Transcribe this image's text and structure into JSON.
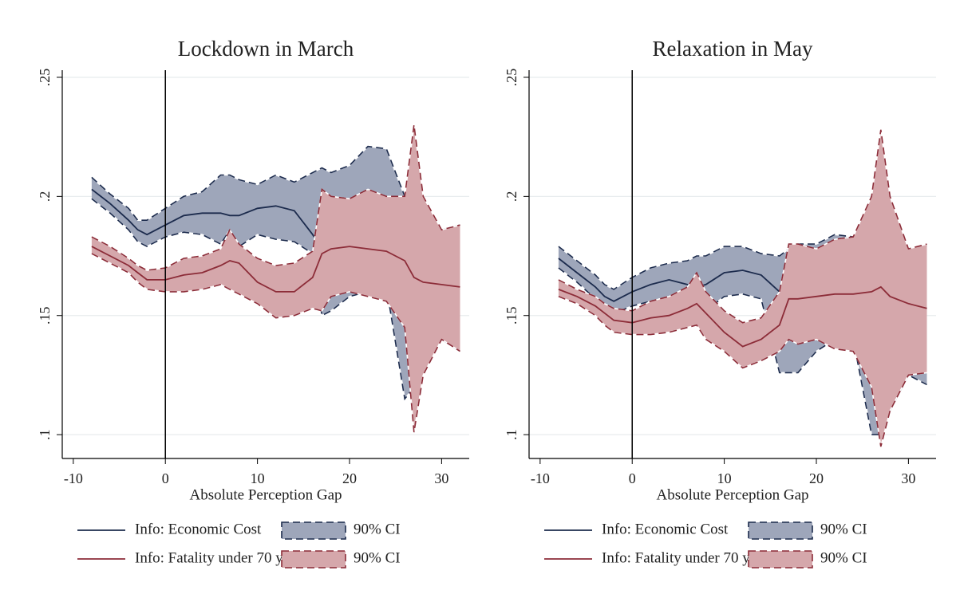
{
  "chart_data": [
    {
      "type": "line",
      "title": "Lockdown in March",
      "x_label": "Absolute Perception Gap",
      "xlim": [
        -11.2,
        33
      ],
      "ylim": [
        0.09,
        0.253
      ],
      "xticks": [
        -10,
        0,
        10,
        20,
        30
      ],
      "yticks": [
        {
          "value": 0.1,
          "label": ".1"
        },
        {
          "value": 0.15,
          "label": ".15"
        },
        {
          "value": 0.2,
          "label": ".2"
        },
        {
          "value": 0.25,
          "label": ".25"
        }
      ],
      "grid": true,
      "xline": 0,
      "x": [
        -8,
        -6,
        -4,
        -3,
        -2,
        0,
        2,
        4,
        6,
        7,
        8,
        10,
        12,
        14,
        16,
        17,
        18,
        20,
        22,
        24,
        26,
        27,
        28,
        30,
        32
      ],
      "series": [
        {
          "name": "Info: Economic Cost",
          "color": "#1c2b4d",
          "ci_name": "90% CI",
          "ci_color": "#9ea6ba",
          "values": [
            0.203,
            0.197,
            0.19,
            0.186,
            0.184,
            0.188,
            0.192,
            0.193,
            0.193,
            0.192,
            0.192,
            0.195,
            0.196,
            0.194,
            0.184,
            0.178,
            0.178,
            0.18,
            0.18,
            0.178,
            0.177,
            0.165,
            0.163,
            0.162,
            0.161
          ],
          "lower": [
            0.199,
            0.193,
            0.186,
            0.181,
            0.179,
            0.183,
            0.185,
            0.184,
            0.18,
            0.186,
            0.179,
            0.184,
            0.182,
            0.181,
            0.176,
            0.15,
            0.152,
            0.158,
            0.16,
            0.162,
            0.115,
            0.12,
            0.14,
            0.14,
            0.135
          ],
          "upper": [
            0.208,
            0.201,
            0.195,
            0.19,
            0.19,
            0.195,
            0.2,
            0.202,
            0.209,
            0.209,
            0.207,
            0.205,
            0.209,
            0.206,
            0.21,
            0.212,
            0.21,
            0.213,
            0.221,
            0.22,
            0.2,
            0.212,
            0.19,
            0.186,
            0.188
          ]
        },
        {
          "name": "Info: Fatality under 70 years",
          "color": "#8c2c38",
          "ci_name": "90% CI",
          "ci_color": "#d5a7ab",
          "values": [
            0.179,
            0.175,
            0.171,
            0.168,
            0.165,
            0.165,
            0.167,
            0.168,
            0.171,
            0.173,
            0.172,
            0.164,
            0.16,
            0.16,
            0.166,
            0.176,
            0.178,
            0.179,
            0.178,
            0.177,
            0.173,
            0.166,
            0.164,
            0.163,
            0.162
          ],
          "lower": [
            0.176,
            0.172,
            0.168,
            0.164,
            0.161,
            0.16,
            0.16,
            0.161,
            0.163,
            0.161,
            0.159,
            0.155,
            0.149,
            0.15,
            0.153,
            0.152,
            0.158,
            0.16,
            0.158,
            0.156,
            0.145,
            0.101,
            0.125,
            0.14,
            0.135
          ],
          "upper": [
            0.183,
            0.179,
            0.174,
            0.171,
            0.169,
            0.17,
            0.174,
            0.175,
            0.178,
            0.186,
            0.18,
            0.174,
            0.171,
            0.172,
            0.177,
            0.203,
            0.2,
            0.199,
            0.203,
            0.2,
            0.2,
            0.23,
            0.2,
            0.186,
            0.188
          ]
        }
      ]
    },
    {
      "type": "line",
      "title": "Relaxation in May",
      "x_label": "Absolute Perception Gap",
      "xlim": [
        -11.2,
        33
      ],
      "ylim": [
        0.09,
        0.253
      ],
      "xticks": [
        -10,
        0,
        10,
        20,
        30
      ],
      "yticks": [
        {
          "value": 0.1,
          "label": ".1"
        },
        {
          "value": 0.15,
          "label": ".15"
        },
        {
          "value": 0.2,
          "label": ".2"
        },
        {
          "value": 0.25,
          "label": ".25"
        }
      ],
      "grid": true,
      "xline": 0,
      "x": [
        -8,
        -6,
        -4,
        -3,
        -2,
        0,
        2,
        4,
        6,
        7,
        8,
        10,
        12,
        14,
        16,
        17,
        18,
        20,
        22,
        24,
        26,
        27,
        28,
        30,
        32
      ],
      "series": [
        {
          "name": "Info: Economic Cost",
          "color": "#1c2b4d",
          "ci_name": "90% CI",
          "ci_color": "#9ea6ba",
          "values": [
            0.174,
            0.168,
            0.162,
            0.158,
            0.156,
            0.16,
            0.163,
            0.165,
            0.163,
            0.162,
            0.163,
            0.168,
            0.169,
            0.167,
            0.16,
            0.159,
            0.159,
            0.159,
            0.159,
            0.159,
            0.156,
            0.155,
            0.155,
            0.154,
            0.153
          ],
          "lower": [
            0.17,
            0.164,
            0.157,
            0.153,
            0.151,
            0.154,
            0.156,
            0.158,
            0.155,
            0.155,
            0.152,
            0.158,
            0.159,
            0.157,
            0.126,
            0.126,
            0.126,
            0.135,
            0.14,
            0.14,
            0.1,
            0.1,
            0.11,
            0.125,
            0.121
          ],
          "upper": [
            0.179,
            0.173,
            0.167,
            0.163,
            0.161,
            0.166,
            0.17,
            0.172,
            0.173,
            0.175,
            0.175,
            0.179,
            0.179,
            0.176,
            0.175,
            0.178,
            0.18,
            0.18,
            0.184,
            0.183,
            0.183,
            0.17,
            0.178,
            0.178,
            0.179
          ]
        },
        {
          "name": "Info: Fatality under 70 years",
          "color": "#8c2c38",
          "ci_name": "90% CI",
          "ci_color": "#d5a7ab",
          "values": [
            0.161,
            0.158,
            0.154,
            0.151,
            0.148,
            0.147,
            0.149,
            0.15,
            0.153,
            0.155,
            0.151,
            0.143,
            0.137,
            0.14,
            0.146,
            0.157,
            0.157,
            0.158,
            0.159,
            0.159,
            0.16,
            0.162,
            0.158,
            0.155,
            0.153
          ],
          "lower": [
            0.158,
            0.155,
            0.15,
            0.146,
            0.143,
            0.142,
            0.142,
            0.143,
            0.145,
            0.146,
            0.14,
            0.135,
            0.128,
            0.131,
            0.135,
            0.14,
            0.138,
            0.14,
            0.136,
            0.135,
            0.12,
            0.095,
            0.11,
            0.125,
            0.126
          ],
          "upper": [
            0.165,
            0.161,
            0.158,
            0.155,
            0.153,
            0.152,
            0.156,
            0.158,
            0.162,
            0.168,
            0.16,
            0.152,
            0.147,
            0.149,
            0.16,
            0.18,
            0.18,
            0.178,
            0.182,
            0.183,
            0.2,
            0.228,
            0.2,
            0.178,
            0.18
          ]
        }
      ]
    }
  ]
}
